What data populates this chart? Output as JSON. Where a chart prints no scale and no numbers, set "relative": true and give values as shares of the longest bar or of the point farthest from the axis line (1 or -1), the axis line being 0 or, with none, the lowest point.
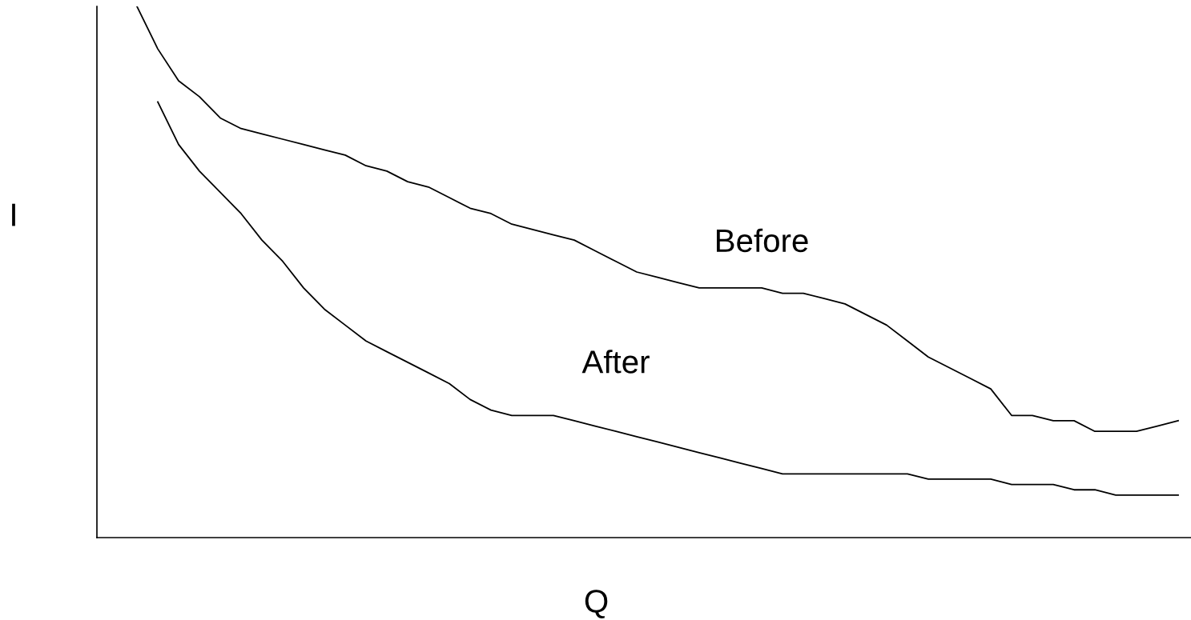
{
  "chart_data": {
    "type": "line",
    "relative": true,
    "xlabel": "Q",
    "ylabel": "I",
    "tick_labels": false,
    "marker": "none",
    "line_style": "solid",
    "categories": [
      null,
      null,
      null,
      null,
      null,
      null,
      null,
      null,
      null,
      null,
      null,
      null,
      null,
      null,
      null,
      null,
      null,
      null,
      null,
      null,
      null,
      null,
      null,
      null,
      null,
      null,
      null,
      null,
      null,
      null,
      null,
      null,
      null,
      null,
      null,
      null,
      null,
      null,
      null,
      null,
      null,
      null,
      null,
      null,
      null,
      null,
      null,
      null,
      null,
      null,
      null
    ],
    "series": [
      {
        "name": "Before",
        "color": "#000000",
        "values": [
          1.0,
          0.92,
          0.86,
          0.83,
          0.79,
          0.77,
          0.76,
          0.75,
          0.74,
          0.73,
          0.72,
          0.7,
          0.69,
          0.67,
          0.66,
          0.64,
          0.62,
          0.61,
          0.59,
          0.58,
          0.57,
          0.56,
          0.54,
          0.52,
          0.5,
          0.49,
          0.48,
          0.47,
          0.47,
          0.47,
          0.47,
          0.46,
          0.46,
          0.45,
          0.44,
          0.42,
          0.4,
          0.37,
          0.34,
          0.32,
          0.3,
          0.28,
          0.23,
          0.23,
          0.22,
          0.22,
          0.2,
          0.2,
          0.2,
          0.21,
          0.22
        ]
      },
      {
        "name": "After",
        "color": "#000000",
        "values": [
          null,
          0.82,
          0.74,
          0.69,
          0.65,
          0.61,
          0.56,
          0.52,
          0.47,
          0.43,
          0.4,
          0.37,
          0.35,
          0.33,
          0.31,
          0.29,
          0.26,
          0.24,
          0.23,
          0.23,
          0.23,
          0.22,
          0.21,
          0.2,
          0.19,
          0.18,
          0.17,
          0.16,
          0.15,
          0.14,
          0.13,
          0.12,
          0.12,
          0.12,
          0.12,
          0.12,
          0.12,
          0.12,
          0.11,
          0.11,
          0.11,
          0.11,
          0.1,
          0.1,
          0.1,
          0.09,
          0.09,
          0.08,
          0.08,
          0.08,
          0.08
        ]
      }
    ]
  }
}
